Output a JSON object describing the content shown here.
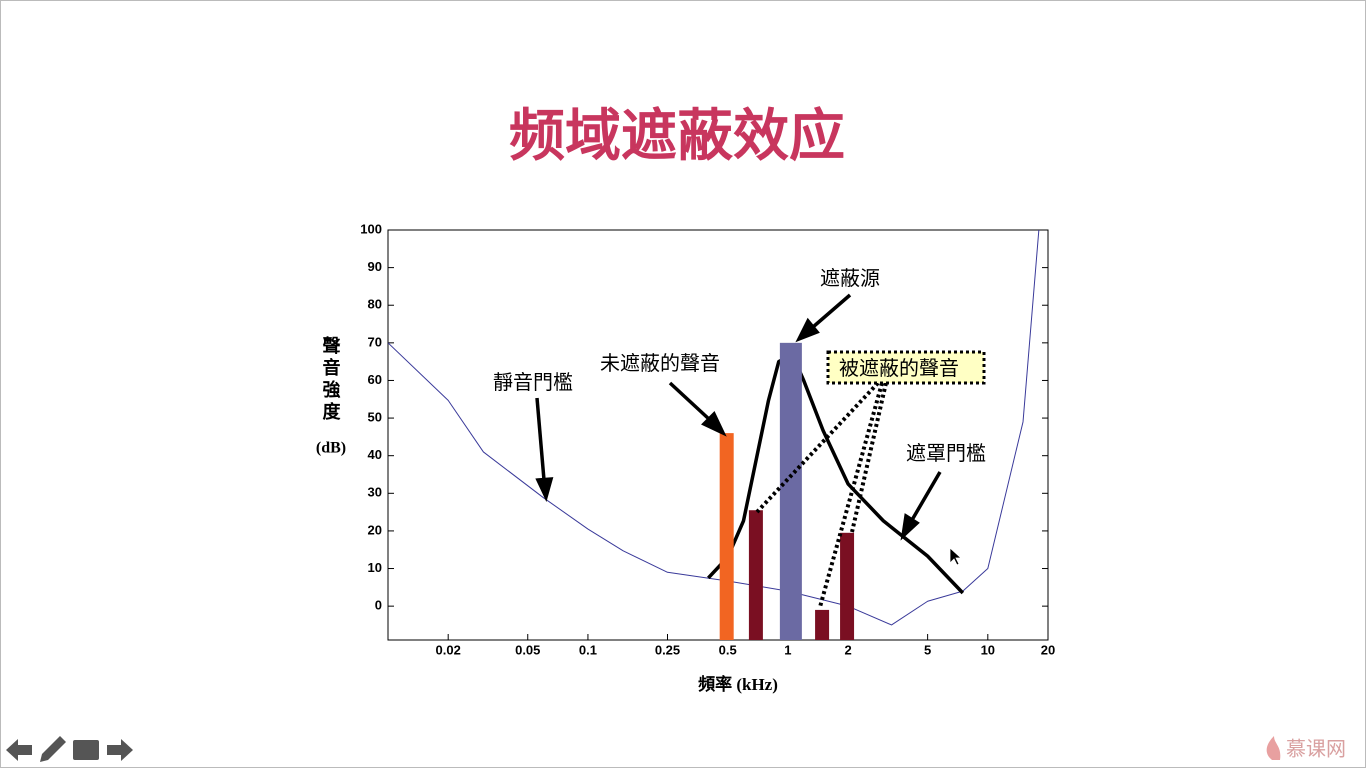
{
  "slide": {
    "title": "频域遮蔽效应",
    "watermark": "慕课网"
  },
  "chart_data": {
    "type": "combo",
    "xlabel": "頻率 (kHz)",
    "ylabel": "聲音強度",
    "ylabel_unit": "(dB)",
    "xscale": "log",
    "xlim": [
      0.01,
      20
    ],
    "xticks": [
      0.02,
      0.05,
      0.1,
      0.25,
      0.5,
      1,
      2,
      5,
      10,
      20
    ],
    "ylim": [
      -9,
      100
    ],
    "yticks": [
      0,
      10,
      20,
      30,
      40,
      50,
      60,
      70,
      80,
      90,
      100
    ],
    "bars": {
      "x": [
        0.5,
        0.7,
        1,
        1.5,
        2
      ],
      "values": [
        46,
        25.5,
        70,
        -1,
        19.5
      ],
      "colors": [
        "#f26522",
        "#7a0f22",
        "#6b6aa3",
        "#7a0f22",
        "#7a0f22"
      ]
    },
    "lines": [
      {
        "color": "#3a3a9a",
        "width": 1,
        "x": [
          0.01,
          0.02,
          0.03,
          0.06,
          0.1,
          0.15,
          0.25,
          0.5,
          1,
          2,
          3.3,
          5,
          7.5,
          10,
          15,
          18
        ],
        "values": [
          70,
          54.7,
          41,
          28.8,
          20.5,
          14.7,
          9,
          6.7,
          4,
          0,
          -5,
          1.3,
          4,
          10,
          49,
          100
        ]
      },
      {
        "color": "#000000",
        "width": 3.5,
        "x": [
          0.4,
          0.5,
          0.6,
          0.8,
          0.9,
          1.05,
          1.2,
          1.5,
          2,
          3,
          5,
          7.5
        ],
        "values": [
          7.5,
          13,
          22.7,
          54.7,
          65,
          67,
          60,
          46.7,
          32.5,
          22.7,
          13.3,
          3.5
        ]
      }
    ],
    "annotations": [
      "靜音門檻",
      "未遮蔽的聲音",
      "遮蔽源",
      "被遮蔽的聲音",
      "遮罩門檻"
    ]
  }
}
